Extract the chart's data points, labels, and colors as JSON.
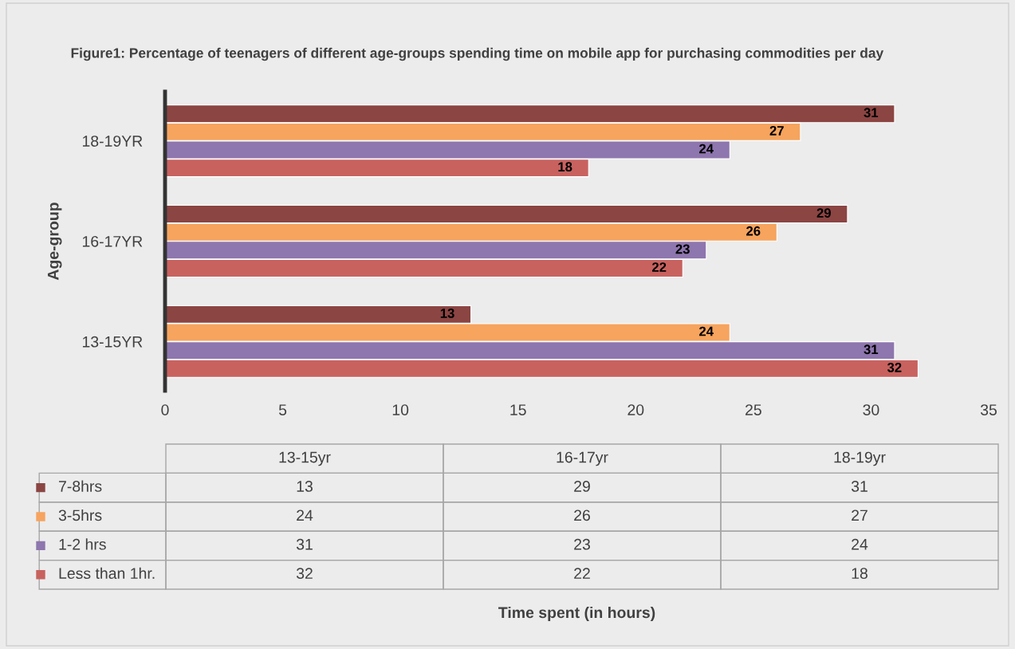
{
  "chart_data": [
    {
      "type": "bar",
      "orientation": "horizontal",
      "title": "Figure1: Percentage of teenagers of different age-groups spending time on mobile app for purchasing commodities per day",
      "xlabel": "Time spent (in hours)",
      "ylabel": "Age-group",
      "categories": [
        "18-19YR",
        "16-17YR",
        "13-15YR"
      ],
      "series": [
        {
          "color": "#8b4543",
          "values": [
            31,
            29,
            13
          ]
        },
        {
          "color": "#f6a45e",
          "values": [
            27,
            26,
            24
          ]
        },
        {
          "color": "#8e76ae",
          "values": [
            24,
            23,
            31
          ]
        },
        {
          "color": "#c8625f",
          "values": [
            18,
            22,
            32
          ]
        }
      ],
      "xlim": [
        0,
        35
      ],
      "xticks": [
        0,
        5,
        10,
        15,
        20,
        25,
        30,
        35
      ],
      "data_labels": true,
      "grid": false
    },
    {
      "type": "other",
      "categories": [
        "13-15yr",
        "16-17yr",
        "18-19yr"
      ],
      "series": [
        {
          "name": "7-8hrs",
          "color": "#8b4543",
          "values": [
            13,
            29,
            31
          ]
        },
        {
          "name": "3-5hrs",
          "color": "#f6a45e",
          "values": [
            24,
            26,
            27
          ]
        },
        {
          "name": "1-2 hrs",
          "color": "#8e76ae",
          "values": [
            31,
            23,
            24
          ]
        },
        {
          "name": "Less than 1hr.",
          "color": "#c8625f",
          "values": [
            32,
            22,
            18
          ]
        }
      ],
      "data_labels": true,
      "legend": "left"
    }
  ]
}
